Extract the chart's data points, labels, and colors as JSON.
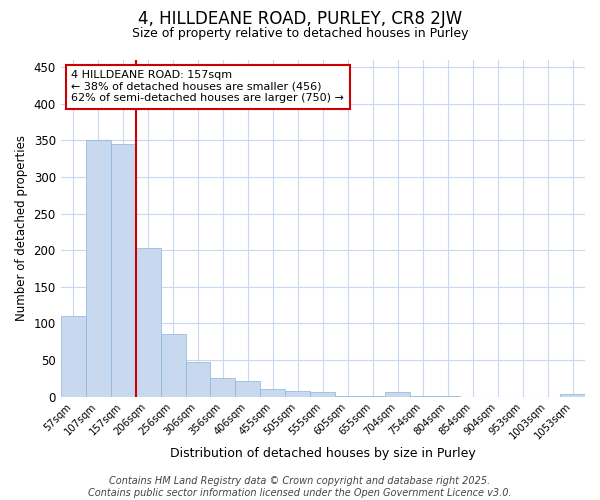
{
  "title": "4, HILLDEANE ROAD, PURLEY, CR8 2JW",
  "subtitle": "Size of property relative to detached houses in Purley",
  "xlabel": "Distribution of detached houses by size in Purley",
  "ylabel": "Number of detached properties",
  "categories": [
    "57sqm",
    "107sqm",
    "157sqm",
    "206sqm",
    "256sqm",
    "306sqm",
    "356sqm",
    "406sqm",
    "455sqm",
    "505sqm",
    "555sqm",
    "605sqm",
    "655sqm",
    "704sqm",
    "754sqm",
    "804sqm",
    "854sqm",
    "904sqm",
    "953sqm",
    "1003sqm",
    "1053sqm"
  ],
  "values": [
    110,
    350,
    345,
    203,
    85,
    47,
    26,
    22,
    10,
    8,
    6,
    1,
    1,
    7,
    1,
    1,
    0,
    0,
    0,
    0,
    4
  ],
  "bar_color": "#c8d8ee",
  "bar_edge_color": "#8ab4d8",
  "red_line_x": 2.5,
  "red_line_color": "#cc0000",
  "annotation_box_color": "#cc0000",
  "annotation_text": "4 HILLDEANE ROAD: 157sqm\n← 38% of detached houses are smaller (456)\n62% of semi-detached houses are larger (750) →",
  "annotation_fontsize": 8.0,
  "ylim": [
    0,
    460
  ],
  "yticks": [
    0,
    50,
    100,
    150,
    200,
    250,
    300,
    350,
    400,
    450
  ],
  "bg_color": "#ffffff",
  "grid_color": "#c8d8f0",
  "title_fontsize": 12,
  "subtitle_fontsize": 9,
  "footer": "Contains HM Land Registry data © Crown copyright and database right 2025.\nContains public sector information licensed under the Open Government Licence v3.0.",
  "footer_fontsize": 7
}
